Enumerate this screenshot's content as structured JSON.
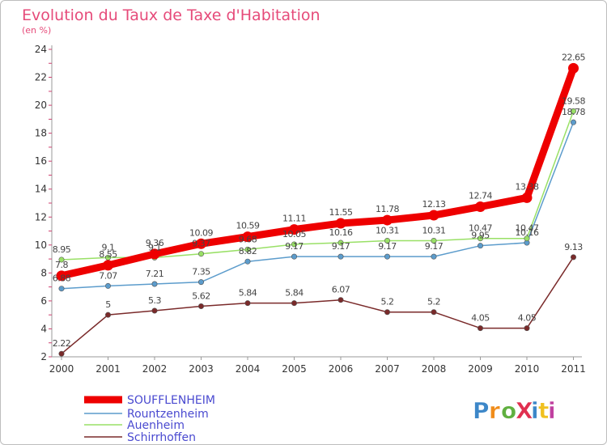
{
  "chart_data": {
    "type": "line",
    "title": "Evolution du Taux de Taxe d'Habitation",
    "subtitle": "(en %)",
    "xlabel": "",
    "ylabel": "",
    "ylim": [
      2,
      24
    ],
    "yticks": [
      "2",
      "4",
      "6",
      "8",
      "10",
      "12",
      "14",
      "16",
      "18",
      "20",
      "22",
      "24"
    ],
    "categories": [
      "2000",
      "2001",
      "2002",
      "2003",
      "2004",
      "2005",
      "2006",
      "2007",
      "2008",
      "2009",
      "2010",
      "2011"
    ],
    "grid": false,
    "legend_position": "bottom-left",
    "series": [
      {
        "name": "SOUFFLENHEIM",
        "color": "#ee0000",
        "values": [
          7.8,
          8.55,
          9.36,
          10.09,
          10.59,
          11.11,
          11.55,
          11.78,
          12.13,
          12.74,
          13.38,
          22.65
        ],
        "labels": [
          "7.8",
          "8.55",
          "9.36",
          "10.09",
          "10.59",
          "11.11",
          "11.55",
          "11.78",
          "12.13",
          "12.74",
          "13.38",
          "22.65"
        ]
      },
      {
        "name": "Rountzenheim",
        "color": "#5c9ccc",
        "values": [
          6.88,
          7.07,
          7.21,
          7.35,
          8.82,
          9.17,
          9.17,
          9.17,
          9.17,
          9.95,
          10.16,
          18.78
        ],
        "labels": [
          "6.88",
          "7.07",
          "7.21",
          "7.35",
          "8.82",
          "9.17",
          "9.17",
          "9.17",
          "9.17",
          "9.95",
          "10.16",
          "18.78"
        ]
      },
      {
        "name": "Auenheim",
        "color": "#99e066",
        "values": [
          8.95,
          9.1,
          9.1,
          9.37,
          9.68,
          10.05,
          10.16,
          10.31,
          10.31,
          10.47,
          10.47,
          19.58
        ],
        "labels": [
          "8.95",
          "9.1",
          "9.1",
          "9.37",
          "9.68",
          "10.05",
          "10.16",
          "10.31",
          "10.31",
          "10.47",
          "10.47",
          "19.58"
        ]
      },
      {
        "name": "Schirrhoffen",
        "color": "#7a2a2a",
        "values": [
          2.22,
          5,
          5.3,
          5.62,
          5.84,
          5.84,
          6.07,
          5.2,
          5.2,
          4.05,
          4.05,
          9.13
        ],
        "labels": [
          "2.22",
          "5",
          "5.3",
          "5.62",
          "5.84",
          "5.84",
          "6.07",
          "5.2",
          "5.2",
          "4.05",
          "4.05",
          "9.13"
        ]
      }
    ]
  },
  "logo": {
    "text": "ProXiti",
    "colors": [
      "#3d87c8",
      "#f08c1a",
      "#60b040",
      "#e03050",
      "#3d87c8",
      "#f0c020",
      "#c040a0"
    ]
  }
}
